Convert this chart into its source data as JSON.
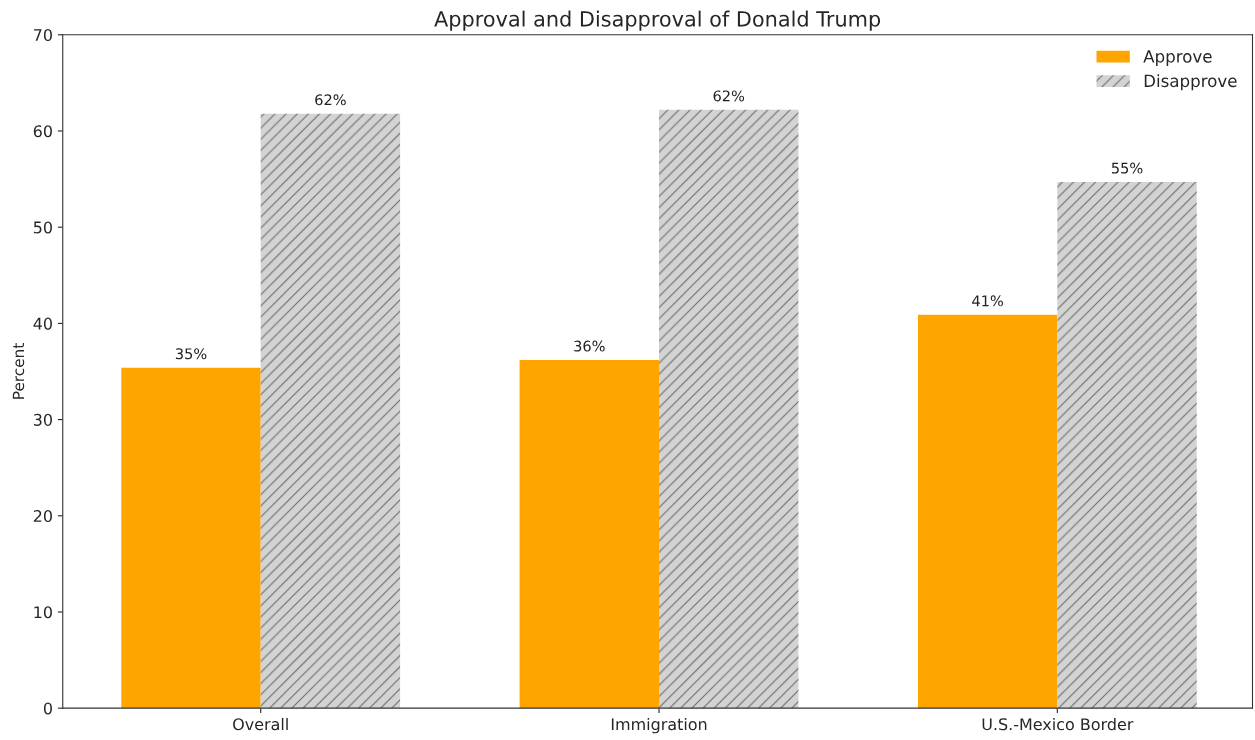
{
  "chart_data": {
    "type": "bar",
    "title": "Approval and Disapproval of Donald Trump",
    "ylabel": "Percent",
    "categories": [
      "Overall",
      "Immigration",
      "U.S.-Mexico Border"
    ],
    "series": [
      {
        "name": "Approve",
        "color": "#ffa500",
        "values": [
          35.4,
          36.2,
          40.9
        ],
        "value_labels": [
          "35%",
          "36%",
          "41%"
        ]
      },
      {
        "name": "Disapprove",
        "color": "#d3d3d3",
        "values": [
          61.8,
          62.2,
          54.7
        ],
        "value_labels": [
          "62%",
          "62%",
          "55%"
        ]
      }
    ],
    "ylim": [
      0,
      70
    ],
    "yticks": [
      0,
      10,
      20,
      30,
      40,
      50,
      60,
      70
    ],
    "legend": "top right",
    "grid": false
  }
}
